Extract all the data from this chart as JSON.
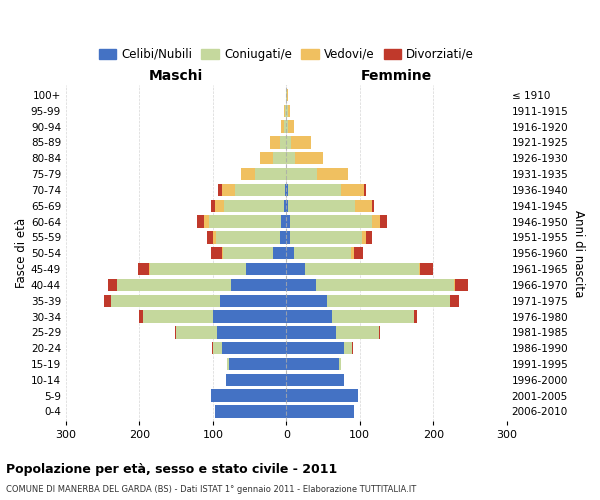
{
  "age_groups": [
    "100+",
    "95-99",
    "90-94",
    "85-89",
    "80-84",
    "75-79",
    "70-74",
    "65-69",
    "60-64",
    "55-59",
    "50-54",
    "45-49",
    "40-44",
    "35-39",
    "30-34",
    "25-29",
    "20-24",
    "15-19",
    "10-14",
    "5-9",
    "0-4"
  ],
  "birth_years": [
    "≤ 1910",
    "1911-1915",
    "1916-1920",
    "1921-1925",
    "1926-1930",
    "1931-1935",
    "1936-1940",
    "1941-1945",
    "1946-1950",
    "1951-1955",
    "1956-1960",
    "1961-1965",
    "1966-1970",
    "1971-1975",
    "1976-1980",
    "1981-1985",
    "1986-1990",
    "1991-1995",
    "1996-2000",
    "2001-2005",
    "2006-2010"
  ],
  "males": {
    "celibi": [
      0,
      0,
      0,
      0,
      0,
      0,
      2,
      3,
      7,
      8,
      18,
      55,
      75,
      90,
      100,
      95,
      88,
      78,
      82,
      102,
      97
    ],
    "coniugati": [
      1,
      2,
      3,
      8,
      18,
      42,
      68,
      82,
      98,
      88,
      68,
      130,
      155,
      148,
      95,
      55,
      12,
      3,
      0,
      0,
      0
    ],
    "vedovi": [
      0,
      1,
      4,
      14,
      18,
      20,
      18,
      12,
      7,
      4,
      2,
      2,
      1,
      0,
      0,
      0,
      0,
      0,
      0,
      0,
      0
    ],
    "divorziati": [
      0,
      0,
      0,
      0,
      0,
      0,
      5,
      5,
      10,
      8,
      15,
      15,
      12,
      10,
      5,
      2,
      1,
      0,
      0,
      0,
      0
    ]
  },
  "females": {
    "nubili": [
      0,
      0,
      0,
      0,
      0,
      0,
      2,
      2,
      5,
      5,
      10,
      25,
      40,
      55,
      62,
      68,
      78,
      72,
      78,
      98,
      92
    ],
    "coniugate": [
      1,
      2,
      2,
      6,
      12,
      42,
      72,
      92,
      112,
      98,
      78,
      155,
      188,
      168,
      112,
      58,
      12,
      3,
      0,
      0,
      0
    ],
    "vedove": [
      1,
      3,
      8,
      28,
      38,
      42,
      32,
      22,
      10,
      6,
      4,
      2,
      1,
      0,
      0,
      0,
      0,
      0,
      0,
      0,
      0
    ],
    "divorziate": [
      0,
      0,
      0,
      0,
      0,
      0,
      2,
      3,
      10,
      8,
      12,
      18,
      18,
      12,
      4,
      2,
      1,
      0,
      0,
      0,
      0
    ]
  },
  "colors": {
    "celibi": "#4472C4",
    "coniugati": "#C5D89D",
    "vedovi": "#F0C060",
    "divorziati": "#C0392B"
  },
  "xlim": 300,
  "title": "Popolazione per età, sesso e stato civile - 2011",
  "subtitle": "COMUNE DI MANERBA DEL GARDA (BS) - Dati ISTAT 1° gennaio 2011 - Elaborazione TUTTITALIA.IT",
  "ylabel_left": "Fasce di età",
  "ylabel_right": "Anni di nascita",
  "xlabel_left": "Maschi",
  "xlabel_right": "Femmine",
  "legend_labels": [
    "Celibi/Nubili",
    "Coniugati/e",
    "Vedovi/e",
    "Divorziati/e"
  ],
  "bg_color": "#FFFFFF",
  "grid_color": "#CCCCCC"
}
